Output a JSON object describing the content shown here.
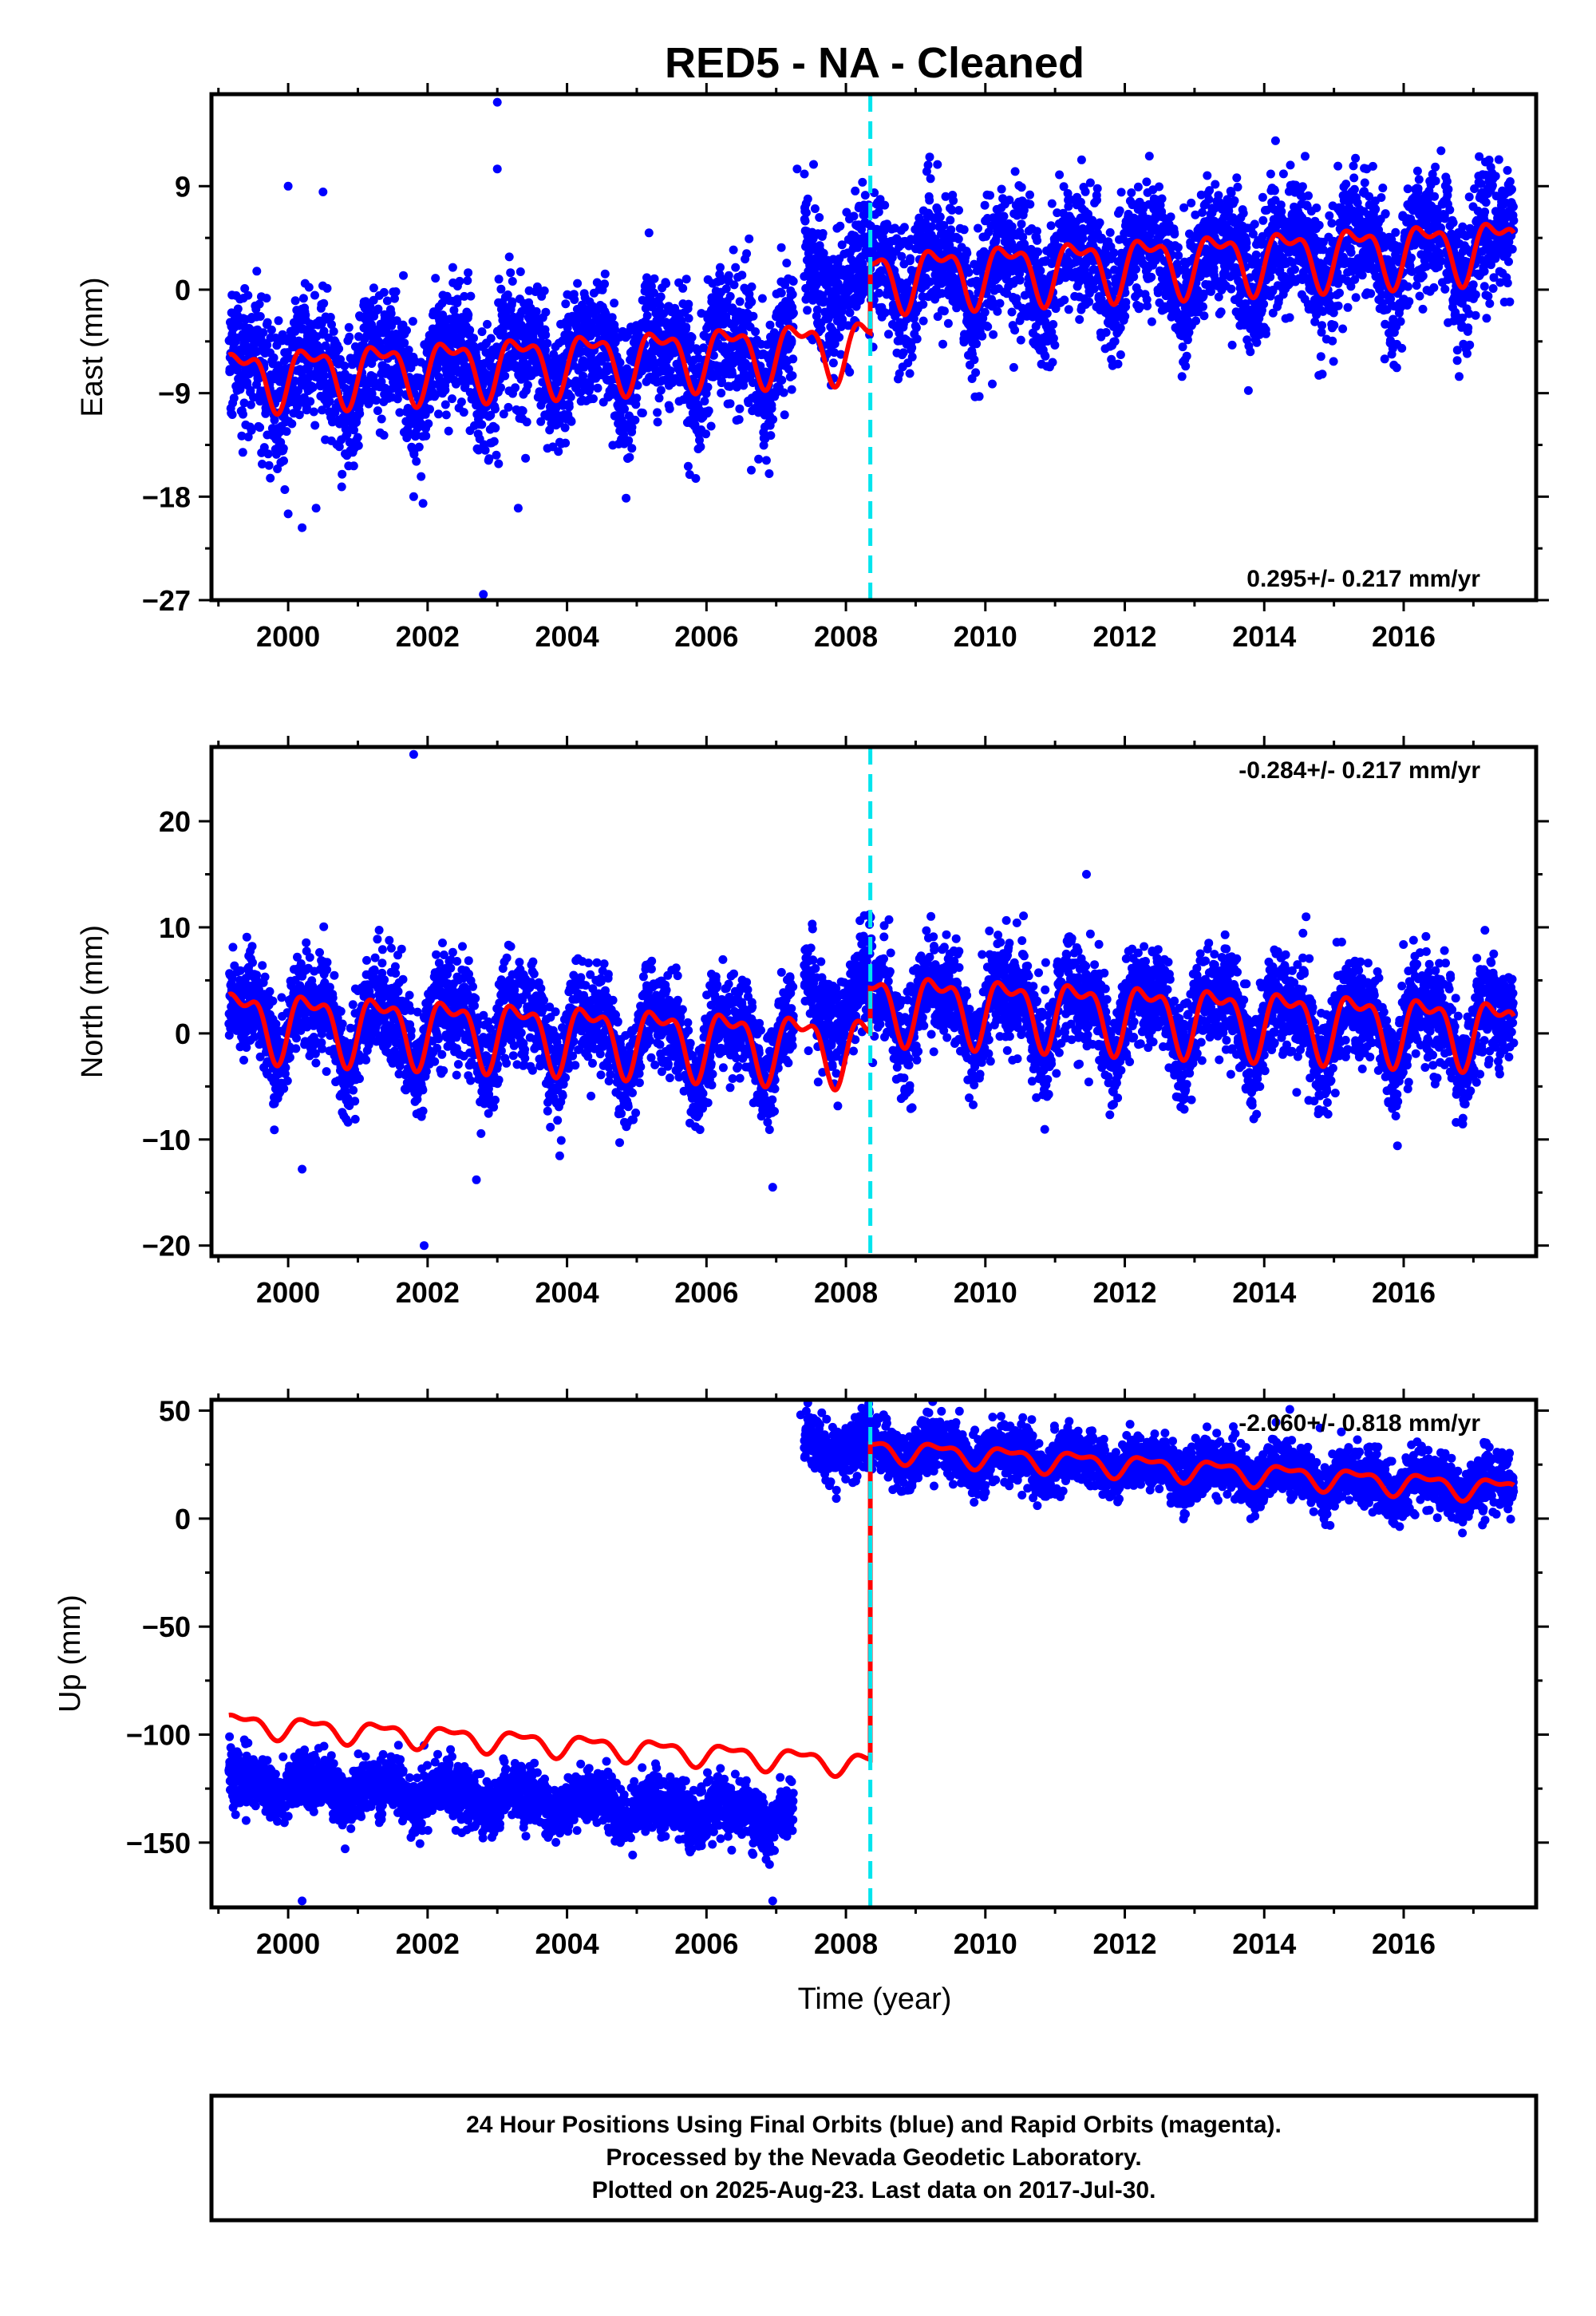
{
  "title": "RED5  - NA - Cleaned",
  "xlabel": "Time (year)",
  "footer": {
    "line1": "24 Hour Positions Using Final Orbits (blue) and Rapid Orbits (magenta).",
    "line2": "Processed by the Nevada Geodetic Laboratory.",
    "line3": "Plotted on 2025-Aug-23. Last data on 2017-Jul-30."
  },
  "colors": {
    "data": "#0000ff",
    "model": "#ff0000",
    "event": "#00e5ee",
    "frame": "#000000"
  },
  "chart_data": [
    {
      "type": "scatter",
      "component": "east",
      "ylabel": "East (mm)",
      "rate_text": "0.295+/- 0.217 mm/yr",
      "xlim": [
        1998.9,
        2017.9
      ],
      "ylim": [
        -27,
        17
      ],
      "yticks": [
        -27,
        -18,
        -9,
        0,
        9
      ],
      "xticks": [
        2000,
        2002,
        2004,
        2006,
        2008,
        2010,
        2012,
        2014,
        2016
      ],
      "grid": false,
      "data_start": 1999.15,
      "data_end": 2017.58,
      "gap": [
        2007.25,
        2007.4
      ],
      "event_line_x": 2008.35,
      "model": {
        "offset_before": -5.0,
        "offset_after": 1.0,
        "trend_mm_per_yr": 0.295,
        "seasonal_amplitude": 2.3,
        "noise_sigma": 2.8
      },
      "outliers": [
        {
          "x": 2003.0,
          "y": 16.3
        },
        {
          "x": 2002.8,
          "y": -26.5
        },
        {
          "x": 2000.0,
          "y": -19.5
        },
        {
          "x": 2000.2,
          "y": -20.7
        },
        {
          "x": 2000.4,
          "y": -19.0
        },
        {
          "x": 2001.8,
          "y": -18.0
        },
        {
          "x": 2003.3,
          "y": -19.0
        },
        {
          "x": 2003.0,
          "y": 10.5
        },
        {
          "x": 2000.0,
          "y": 9.0
        },
        {
          "x": 2000.5,
          "y": 8.5
        },
        {
          "x": 2006.9,
          "y": -16.0
        },
        {
          "x": 2010.1,
          "y": -8.2
        },
        {
          "x": 2007.3,
          "y": 10.5
        }
      ]
    },
    {
      "type": "scatter",
      "component": "north",
      "ylabel": "North (mm)",
      "rate_text": "-0.284+/- 0.217 mm/yr",
      "xlim": [
        1998.9,
        2017.9
      ],
      "ylim": [
        -21,
        27
      ],
      "yticks": [
        -20,
        -10,
        0,
        10,
        20
      ],
      "xticks": [
        2000,
        2002,
        2004,
        2006,
        2008,
        2010,
        2012,
        2014,
        2016
      ],
      "grid": false,
      "data_start": 1999.15,
      "data_end": 2017.58,
      "gap": [
        2007.25,
        2007.4
      ],
      "event_line_x": 2008.35,
      "model": {
        "offset_before": -1.2,
        "offset_after": 3.0,
        "trend_mm_per_yr": -0.284,
        "seasonal_amplitude": 2.8,
        "noise_sigma": 2.3
      },
      "outliers": [
        {
          "x": 2001.8,
          "y": 26.3
        },
        {
          "x": 2001.95,
          "y": -20.0
        },
        {
          "x": 2011.45,
          "y": 15.0
        },
        {
          "x": 2000.2,
          "y": -12.8
        },
        {
          "x": 2002.7,
          "y": -13.8
        },
        {
          "x": 2006.95,
          "y": -14.5
        },
        {
          "x": 2008.95,
          "y": -7.0
        },
        {
          "x": 2002.5,
          "y": 8.2
        },
        {
          "x": 2014.6,
          "y": 11.0
        }
      ]
    },
    {
      "type": "scatter",
      "component": "up",
      "ylabel": "Up (mm)",
      "rate_text": "-2.060+/- 0.818 mm/yr",
      "xlim": [
        1998.9,
        2017.9
      ],
      "ylim": [
        -180,
        55
      ],
      "yticks": [
        -150,
        -100,
        -50,
        0,
        50
      ],
      "xticks": [
        2000,
        2002,
        2004,
        2006,
        2008,
        2010,
        2012,
        2014,
        2016
      ],
      "grid": false,
      "data_start": 1999.15,
      "data_end": 2017.58,
      "gap": [
        2007.25,
        2007.4
      ],
      "event_line_x": 2008.35,
      "model": {
        "offset_before": -113.0,
        "offset_after": 33.0,
        "trend_mm_per_yr": -2.06,
        "seasonal_amplitude": 4.5,
        "noise_sigma": 6.5,
        "data_offset_before": -27.0
      },
      "outliers": [
        {
          "x": 2007.35,
          "y": 48.0
        },
        {
          "x": 2014.8,
          "y": 42.0
        },
        {
          "x": 2001.95,
          "y": -105.0
        },
        {
          "x": 2000.2,
          "y": -177.0
        },
        {
          "x": 2006.95,
          "y": -177.0
        }
      ]
    }
  ]
}
